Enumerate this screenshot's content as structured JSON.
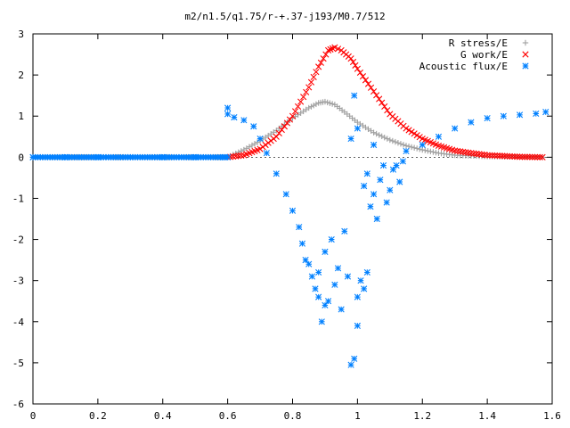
{
  "chart_data": {
    "type": "scatter",
    "title": "m2/n1.5/q1.75/r-+.37-j193/M0.7/512",
    "xlabel": "",
    "ylabel": "",
    "xlim": [
      0,
      1.6
    ],
    "ylim": [
      -6,
      3
    ],
    "x_ticks": [
      "0",
      "0.2",
      "0.4",
      "0.6",
      "0.8",
      "1",
      "1.2",
      "1.4",
      "1.6"
    ],
    "y_ticks": [
      "3",
      "2",
      "1",
      "0",
      "-1",
      "-2",
      "-3",
      "-4",
      "-5",
      "-6"
    ],
    "grid": false,
    "legend_position": "top-right",
    "series": [
      {
        "name": "R stress/E",
        "marker": "plus",
        "color": "#a0a0a0",
        "points": [
          [
            0.0,
            0
          ],
          [
            0.1,
            0
          ],
          [
            0.2,
            0
          ],
          [
            0.3,
            0
          ],
          [
            0.4,
            0
          ],
          [
            0.5,
            0
          ],
          [
            0.59,
            0
          ],
          [
            0.6,
            0.0
          ],
          [
            0.65,
            0.18
          ],
          [
            0.7,
            0.4
          ],
          [
            0.75,
            0.65
          ],
          [
            0.8,
            0.95
          ],
          [
            0.85,
            1.2
          ],
          [
            0.88,
            1.32
          ],
          [
            0.9,
            1.35
          ],
          [
            0.93,
            1.28
          ],
          [
            0.96,
            1.1
          ],
          [
            1.0,
            0.85
          ],
          [
            1.05,
            0.6
          ],
          [
            1.1,
            0.42
          ],
          [
            1.15,
            0.28
          ],
          [
            1.2,
            0.18
          ],
          [
            1.25,
            0.1
          ],
          [
            1.3,
            0.05
          ],
          [
            1.4,
            0.02
          ],
          [
            1.5,
            0.01
          ],
          [
            1.57,
            0.0
          ]
        ]
      },
      {
        "name": "G work/E",
        "marker": "cross",
        "color": "#ff0000",
        "points": [
          [
            0.6,
            0.0
          ],
          [
            0.65,
            0.05
          ],
          [
            0.7,
            0.2
          ],
          [
            0.75,
            0.5
          ],
          [
            0.8,
            1.0
          ],
          [
            0.85,
            1.7
          ],
          [
            0.88,
            2.2
          ],
          [
            0.91,
            2.6
          ],
          [
            0.93,
            2.67
          ],
          [
            0.95,
            2.6
          ],
          [
            0.98,
            2.4
          ],
          [
            1.0,
            2.15
          ],
          [
            1.05,
            1.6
          ],
          [
            1.1,
            1.05
          ],
          [
            1.15,
            0.7
          ],
          [
            1.2,
            0.45
          ],
          [
            1.25,
            0.28
          ],
          [
            1.3,
            0.16
          ],
          [
            1.35,
            0.1
          ],
          [
            1.4,
            0.05
          ],
          [
            1.5,
            0.01
          ],
          [
            1.57,
            0.0
          ]
        ]
      },
      {
        "name": "Acoustic flux/E",
        "marker": "star",
        "color": "#0080ff",
        "points": [
          [
            0.0,
            0
          ],
          [
            0.1,
            0
          ],
          [
            0.2,
            0
          ],
          [
            0.3,
            0
          ],
          [
            0.4,
            0
          ],
          [
            0.5,
            0
          ],
          [
            0.59,
            0
          ],
          [
            0.6,
            1.2
          ],
          [
            0.6,
            1.05
          ],
          [
            0.62,
            0.97
          ],
          [
            0.65,
            0.9
          ],
          [
            0.68,
            0.75
          ],
          [
            0.7,
            0.45
          ],
          [
            0.72,
            0.1
          ],
          [
            0.75,
            -0.4
          ],
          [
            0.78,
            -0.9
          ],
          [
            0.8,
            -1.3
          ],
          [
            0.82,
            -1.7
          ],
          [
            0.83,
            -2.1
          ],
          [
            0.84,
            -2.5
          ],
          [
            0.85,
            -2.6
          ],
          [
            0.86,
            -2.9
          ],
          [
            0.87,
            -3.2
          ],
          [
            0.88,
            -3.4
          ],
          [
            0.88,
            -2.8
          ],
          [
            0.89,
            -4.0
          ],
          [
            0.9,
            -3.6
          ],
          [
            0.9,
            -2.3
          ],
          [
            0.91,
            -3.5
          ],
          [
            0.92,
            -2.0
          ],
          [
            0.93,
            -3.1
          ],
          [
            0.94,
            -2.7
          ],
          [
            0.95,
            -3.7
          ],
          [
            0.96,
            -1.8
          ],
          [
            0.97,
            -2.9
          ],
          [
            0.98,
            -5.05
          ],
          [
            0.99,
            -4.9
          ],
          [
            1.0,
            -3.4
          ],
          [
            1.0,
            -4.1
          ],
          [
            1.01,
            -3.0
          ],
          [
            1.02,
            -3.2
          ],
          [
            1.03,
            -2.8
          ],
          [
            1.02,
            -0.7
          ],
          [
            1.03,
            -0.4
          ],
          [
            1.04,
            -1.2
          ],
          [
            1.05,
            -0.9
          ],
          [
            1.06,
            -1.5
          ],
          [
            1.07,
            -0.55
          ],
          [
            1.08,
            -0.2
          ],
          [
            1.09,
            -1.1
          ],
          [
            1.1,
            -0.8
          ],
          [
            1.11,
            -0.3
          ],
          [
            1.12,
            -0.2
          ],
          [
            1.13,
            -0.6
          ],
          [
            1.14,
            -0.1
          ],
          [
            0.99,
            1.5
          ],
          [
            0.98,
            0.45
          ],
          [
            1.0,
            0.7
          ],
          [
            1.05,
            0.3
          ],
          [
            1.15,
            0.15
          ],
          [
            1.2,
            0.3
          ],
          [
            1.25,
            0.5
          ],
          [
            1.3,
            0.7
          ],
          [
            1.35,
            0.85
          ],
          [
            1.4,
            0.95
          ],
          [
            1.45,
            1.0
          ],
          [
            1.5,
            1.03
          ],
          [
            1.55,
            1.06
          ],
          [
            1.58,
            1.1
          ]
        ]
      }
    ]
  }
}
